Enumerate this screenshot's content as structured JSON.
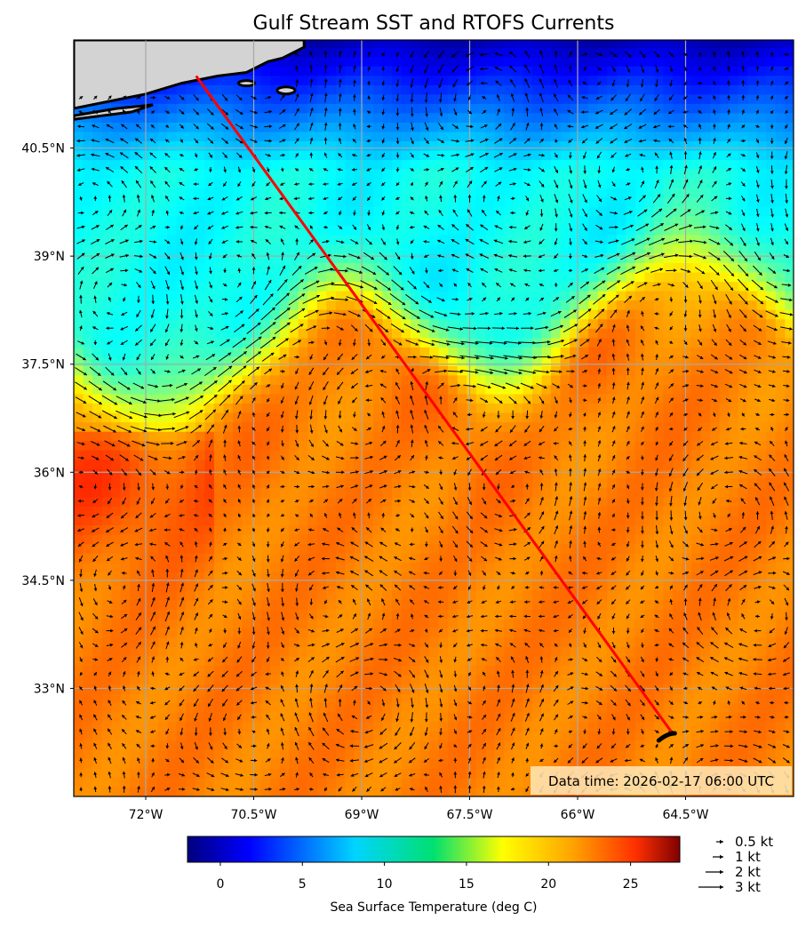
{
  "title": "Gulf Stream SST and RTOFS Currents",
  "map": {
    "lon_range": [
      -73.0,
      -63.0
    ],
    "lat_range": [
      31.5,
      42.0
    ],
    "lat_ticks": [
      {
        "value": 40.5,
        "label": "40.5°N"
      },
      {
        "value": 39.0,
        "label": "39°N"
      },
      {
        "value": 37.5,
        "label": "37.5°N"
      },
      {
        "value": 36.0,
        "label": "36°N"
      },
      {
        "value": 34.5,
        "label": "34.5°N"
      },
      {
        "value": 33.0,
        "label": "33°N"
      }
    ],
    "lon_ticks": [
      {
        "value": -72.0,
        "label": "72°W"
      },
      {
        "value": -70.5,
        "label": "70.5°W"
      },
      {
        "value": -69.0,
        "label": "69°W"
      },
      {
        "value": -67.5,
        "label": "67.5°W"
      },
      {
        "value": -66.0,
        "label": "66°W"
      },
      {
        "value": -64.5,
        "label": "64.5°W"
      }
    ],
    "grid": true,
    "land_color": "#d3d3d3",
    "route": {
      "color": "#ff0000",
      "start": {
        "lon": -71.3,
        "lat": 41.5
      },
      "end": {
        "lon": -64.7,
        "lat": 32.4
      }
    },
    "data_time": "Data time: 2026-02-17 06:00 UTC"
  },
  "colorbar": {
    "range": [
      -2,
      28
    ],
    "ticks": [
      {
        "value": 0,
        "label": "0"
      },
      {
        "value": 5,
        "label": "5"
      },
      {
        "value": 10,
        "label": "10"
      },
      {
        "value": 15,
        "label": "15"
      },
      {
        "value": 20,
        "label": "20"
      },
      {
        "value": 25,
        "label": "25"
      }
    ],
    "label": "Sea Surface Temperature (deg C)",
    "colormap": "jet"
  },
  "quiver_legend": [
    {
      "speed": 0.5,
      "label": "0.5 kt"
    },
    {
      "speed": 1,
      "label": "1 kt"
    },
    {
      "speed": 2,
      "label": "2 kt"
    },
    {
      "speed": 3,
      "label": "3 kt"
    }
  ]
}
